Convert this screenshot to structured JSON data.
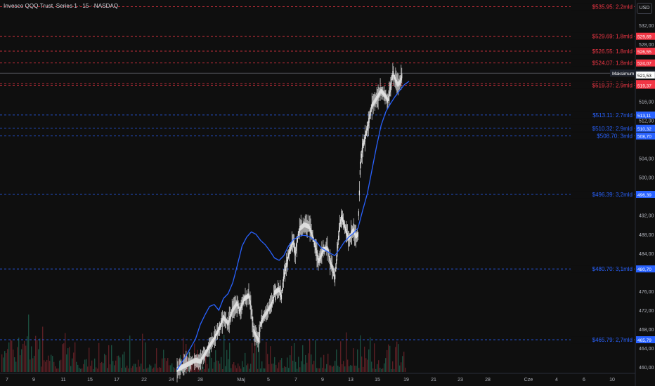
{
  "header": {
    "title": "Invesco QQQ Trust, Series 1 · 15 · NASDAQ",
    "currency_button": "USD"
  },
  "colors": {
    "background": "#0f0f0f",
    "grid": "#1c1c1c",
    "axis_text": "#b2b5be",
    "resistance": "#f23645",
    "support": "#2962ff",
    "ma_line": "#2962ff",
    "candles": "#e0e0e0",
    "volume_up": "#1b4d3e",
    "volume_down": "#5a1f24"
  },
  "chart_data": {
    "type": "line",
    "title": "Invesco QQQ Trust, Series 1 · 15 · NASDAQ",
    "price_axis": {
      "min": 459,
      "max": 536,
      "ticks": [
        "532,00",
        "528,00",
        "516,00",
        "512,00",
        "504,00",
        "500,00",
        "492,00",
        "488,00",
        "484,00",
        "476,00",
        "472,00",
        "468,00",
        "464,00",
        "460,00"
      ]
    },
    "time_axis": {
      "labels": [
        "7",
        "9",
        "11",
        "15",
        "17",
        "22",
        "24",
        "28",
        "Maj",
        "5",
        "7",
        "9",
        "13",
        "15",
        "19",
        "21",
        "23",
        "28",
        "Cze",
        "4",
        "6",
        "10"
      ]
    },
    "horizontal_levels": [
      {
        "label": "$535.95: 2.2mld",
        "price": 535.95,
        "tag": "",
        "side": "resistance",
        "dashed": true
      },
      {
        "label": "$529.69: 1.8mld",
        "price": 529.69,
        "tag": "529,69",
        "side": "resistance",
        "dashed": true
      },
      {
        "label": "$526.55: 1.8mld",
        "price": 526.55,
        "tag": "526,55",
        "side": "resistance",
        "dashed": true
      },
      {
        "label": "$524.07: 1.8mld",
        "price": 524.07,
        "tag": "524,07",
        "side": "resistance",
        "dashed": true
      },
      {
        "label": "$519.72: 2.8mld",
        "price": 519.72,
        "tag": "519,72",
        "side": "resistance",
        "dashed": true
      },
      {
        "label": "$519.37: 2.9mld",
        "price": 519.37,
        "tag": "519,37",
        "side": "resistance",
        "dashed": true
      },
      {
        "label": "$513.11: 2.7mld",
        "price": 513.11,
        "tag": "513,11",
        "side": "support",
        "dashed": true
      },
      {
        "label": "$510.32: 2.9mld",
        "price": 510.32,
        "tag": "510,32",
        "side": "support",
        "dashed": true
      },
      {
        "label": "$508.70: 3mld",
        "price": 508.7,
        "tag": "508,70",
        "side": "support",
        "dashed": true
      },
      {
        "label": "$496.39: 3,2mld",
        "price": 496.39,
        "tag": "496,39",
        "side": "support",
        "dashed": true
      },
      {
        "label": "$480.70: 3,1mld",
        "price": 480.7,
        "tag": "480,70",
        "side": "support",
        "dashed": true
      },
      {
        "label": "$465.79: 2,7mld",
        "price": 465.79,
        "tag": "465,79",
        "side": "support",
        "dashed": true
      }
    ],
    "max_marker": {
      "label": "Maksimum",
      "price": 521.93,
      "tag": "521,93"
    },
    "last_price": {
      "price": 521.53,
      "tag": "521,53"
    },
    "price_series": {
      "name": "",
      "points": [
        [
          0,
          459.5
        ],
        [
          4,
          460.5
        ],
        [
          8,
          461.5
        ],
        [
          10,
          461.2
        ],
        [
          12,
          462.8
        ],
        [
          14,
          464.5
        ],
        [
          16,
          466.0
        ],
        [
          18,
          468.0
        ],
        [
          20,
          470.5
        ],
        [
          22,
          469.2
        ],
        [
          24,
          472.0
        ],
        [
          26,
          473.5
        ],
        [
          27,
          471.8
        ],
        [
          29,
          474.4
        ],
        [
          31,
          475.1
        ],
        [
          32,
          472.0
        ],
        [
          33,
          467.6
        ],
        [
          35,
          465.5
        ],
        [
          36,
          469.0
        ],
        [
          37,
          470.5
        ],
        [
          39,
          471.8
        ],
        [
          41,
          473.5
        ],
        [
          42,
          475.7
        ],
        [
          44,
          476.4
        ],
        [
          45,
          474.8
        ],
        [
          46,
          479.0
        ],
        [
          48,
          483.5
        ],
        [
          50,
          486.6
        ],
        [
          51,
          484.0
        ],
        [
          52,
          487.2
        ],
        [
          53,
          489.2
        ],
        [
          55,
          490.0
        ],
        [
          57,
          489.6
        ],
        [
          58,
          488.3
        ],
        [
          59,
          486.5
        ],
        [
          60,
          484.6
        ],
        [
          61,
          482.2
        ],
        [
          62,
          483.5
        ],
        [
          63,
          484.8
        ],
        [
          65,
          485.0
        ],
        [
          66,
          482.0
        ],
        [
          67,
          480.8
        ],
        [
          68,
          478.5
        ],
        [
          69,
          483.8
        ],
        [
          70,
          489.5
        ],
        [
          71,
          491.8
        ],
        [
          72,
          490.0
        ],
        [
          73,
          488.5
        ],
        [
          74,
          487.0
        ],
        [
          75,
          488.0
        ],
        [
          76,
          489.0
        ],
        [
          77,
          487.5
        ],
        [
          78,
          488.0
        ],
        [
          79,
          502.5
        ],
        [
          80,
          506.5
        ],
        [
          81,
          508.0
        ],
        [
          82,
          510.0
        ],
        [
          84,
          515.0
        ],
        [
          86,
          516.5
        ],
        [
          88,
          518.2
        ],
        [
          90,
          517.0
        ],
        [
          91,
          516.0
        ],
        [
          92,
          519.0
        ],
        [
          93,
          521.9
        ],
        [
          94,
          520.5
        ],
        [
          95,
          519.5
        ],
        [
          96,
          520.0
        ],
        [
          97,
          521.5
        ]
      ]
    },
    "moving_average": {
      "name": "",
      "points": [
        [
          0,
          459.5
        ],
        [
          4,
          462.5
        ],
        [
          8,
          466.0
        ],
        [
          10,
          469.0
        ],
        [
          12,
          471.0
        ],
        [
          14,
          472.8
        ],
        [
          16,
          473.2
        ],
        [
          18,
          472.0
        ],
        [
          20,
          474.5
        ],
        [
          22,
          475.5
        ],
        [
          24,
          477.8
        ],
        [
          26,
          481.5
        ],
        [
          28,
          485.5
        ],
        [
          30,
          487.4
        ],
        [
          32,
          488.5
        ],
        [
          34,
          488.0
        ],
        [
          36,
          486.7
        ],
        [
          38,
          485.8
        ],
        [
          40,
          484.5
        ],
        [
          42,
          483.0
        ],
        [
          44,
          482.5
        ],
        [
          46,
          483.5
        ],
        [
          48,
          485.5
        ],
        [
          50,
          486.8
        ],
        [
          52,
          487.4
        ],
        [
          54,
          487.8
        ],
        [
          56,
          487.7
        ],
        [
          58,
          487.2
        ],
        [
          60,
          486.5
        ],
        [
          62,
          485.2
        ],
        [
          64,
          484.6
        ],
        [
          66,
          484.0
        ],
        [
          68,
          483.5
        ],
        [
          70,
          484.8
        ],
        [
          72,
          486.3
        ],
        [
          74,
          487.4
        ],
        [
          76,
          488.2
        ],
        [
          78,
          489.3
        ],
        [
          80,
          493.0
        ],
        [
          82,
          496.5
        ],
        [
          84,
          501.5
        ],
        [
          86,
          506.5
        ],
        [
          88,
          511.0
        ],
        [
          90,
          513.8
        ],
        [
          92,
          515.5
        ],
        [
          94,
          517.0
        ],
        [
          96,
          518.3
        ],
        [
          98,
          519.5
        ],
        [
          100,
          520.2
        ]
      ]
    }
  }
}
